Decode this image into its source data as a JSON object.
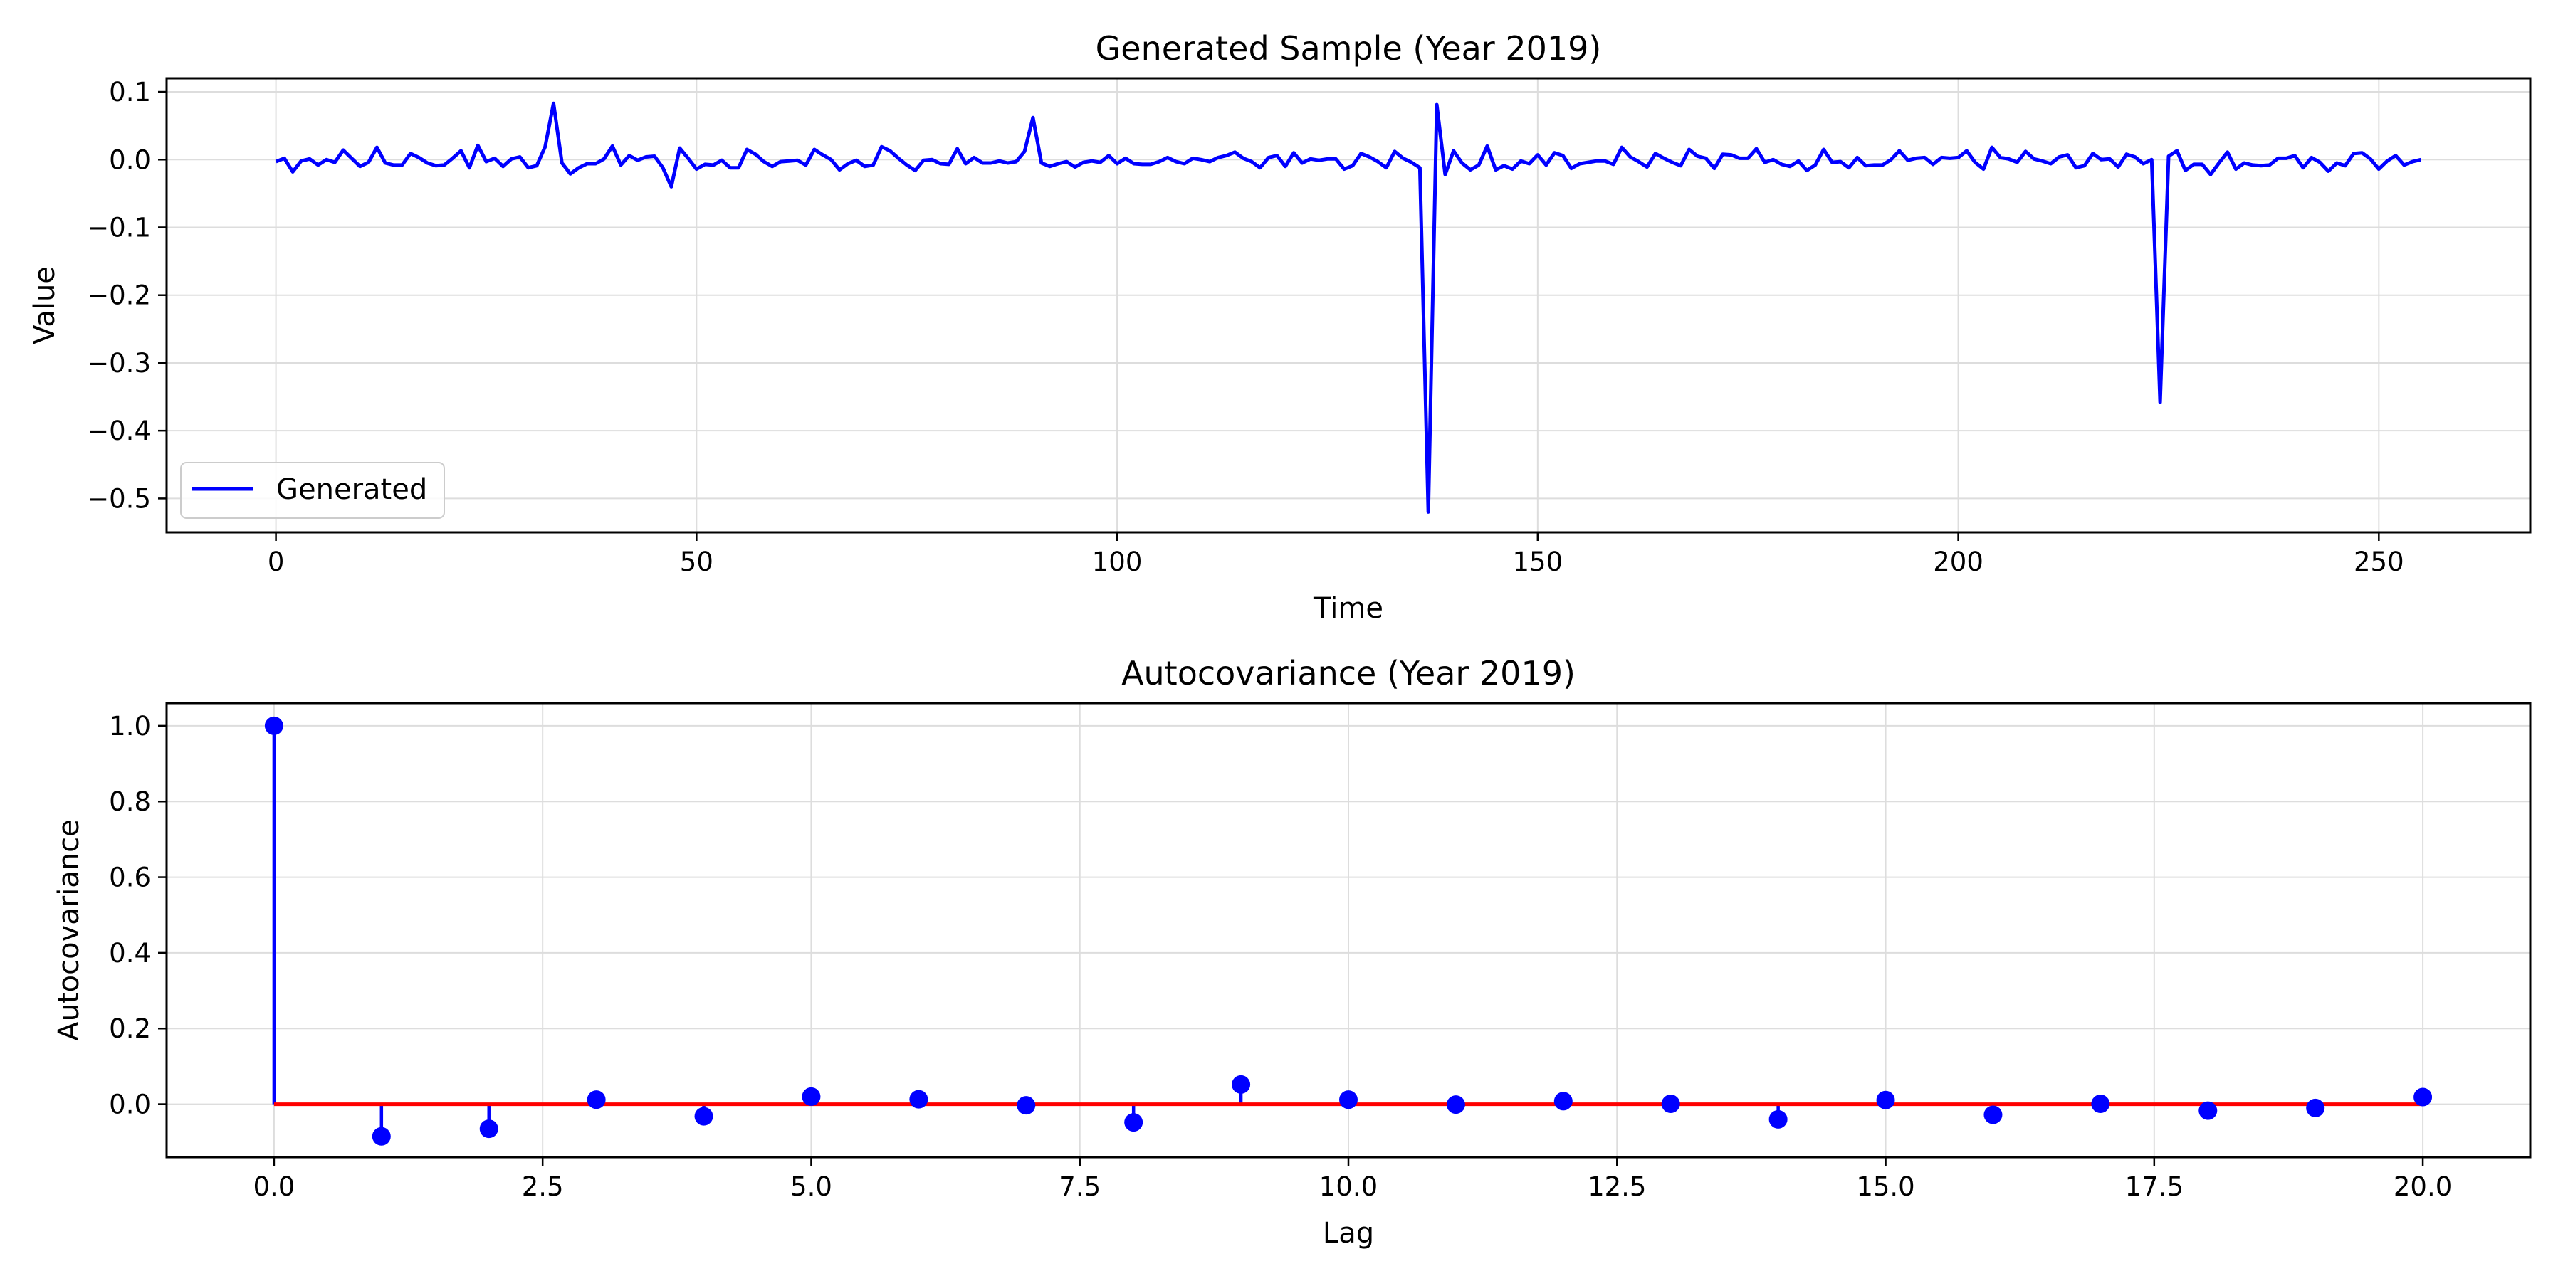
{
  "chart_data": [
    {
      "type": "line",
      "title": "Generated Sample (Year 2019)",
      "xlabel": "Time",
      "ylabel": "Value",
      "xlim": [
        -13,
        268
      ],
      "ylim": [
        -0.55,
        0.12
      ],
      "xticks": [
        0,
        50,
        100,
        150,
        200,
        250
      ],
      "xtick_labels": [
        "0",
        "50",
        "100",
        "150",
        "200",
        "250"
      ],
      "yticks": [
        0.1,
        0.0,
        -0.1,
        -0.2,
        -0.3,
        -0.4,
        -0.5
      ],
      "ytick_labels": [
        "0.1",
        "0.0",
        "−0.1",
        "−0.2",
        "−0.3",
        "−0.4",
        "−0.5"
      ],
      "grid": true,
      "legend": "lower-left",
      "series": [
        {
          "name": "Generated",
          "color": "#0000ff",
          "x_start": 0,
          "x_step": 1,
          "values": [
            -0.003,
            0.002,
            -0.018,
            -0.002,
            0.001,
            -0.008,
            0.0,
            -0.004,
            0.014,
            0.002,
            -0.01,
            -0.004,
            0.018,
            -0.005,
            -0.008,
            -0.008,
            0.009,
            0.003,
            -0.005,
            -0.009,
            -0.008,
            0.002,
            0.013,
            -0.012,
            0.021,
            -0.003,
            0.002,
            -0.01,
            0.001,
            0.004,
            -0.012,
            -0.009,
            0.019,
            0.083,
            -0.005,
            -0.021,
            -0.012,
            -0.006,
            -0.006,
            0.001,
            0.02,
            -0.008,
            0.006,
            -0.001,
            0.004,
            0.005,
            -0.012,
            -0.04,
            0.017,
            0.002,
            -0.014,
            -0.007,
            -0.008,
            -0.001,
            -0.012,
            -0.012,
            0.015,
            0.008,
            -0.003,
            -0.01,
            -0.003,
            -0.002,
            -0.001,
            -0.008,
            0.015,
            0.007,
            0.0,
            -0.015,
            -0.006,
            -0.001,
            -0.01,
            -0.008,
            0.019,
            0.013,
            0.002,
            -0.008,
            -0.016,
            -0.001,
            0.0,
            -0.006,
            -0.007,
            0.016,
            -0.006,
            0.003,
            -0.005,
            -0.005,
            -0.002,
            -0.005,
            -0.003,
            0.012,
            0.062,
            -0.005,
            -0.01,
            -0.006,
            -0.003,
            -0.011,
            -0.004,
            -0.002,
            -0.004,
            0.006,
            -0.006,
            0.002,
            -0.006,
            -0.007,
            -0.007,
            -0.003,
            0.003,
            -0.003,
            -0.006,
            0.002,
            0.0,
            -0.003,
            0.003,
            0.006,
            0.011,
            0.002,
            -0.003,
            -0.012,
            0.003,
            0.006,
            -0.01,
            0.01,
            -0.005,
            0.001,
            -0.001,
            0.001,
            0.001,
            -0.014,
            -0.009,
            0.009,
            0.004,
            -0.003,
            -0.012,
            0.012,
            0.002,
            -0.004,
            -0.012,
            -0.52,
            0.081,
            -0.022,
            0.013,
            -0.005,
            -0.015,
            -0.008,
            0.02,
            -0.015,
            -0.009,
            -0.014,
            -0.002,
            -0.006,
            0.007,
            -0.008,
            0.01,
            0.006,
            -0.013,
            -0.006,
            -0.004,
            -0.002,
            -0.002,
            -0.007,
            0.018,
            0.004,
            -0.003,
            -0.011,
            0.009,
            0.002,
            -0.004,
            -0.009,
            0.015,
            0.005,
            0.002,
            -0.013,
            0.008,
            0.007,
            0.002,
            0.002,
            0.016,
            -0.004,
            0.0,
            -0.007,
            -0.01,
            -0.002,
            -0.016,
            -0.008,
            0.015,
            -0.004,
            -0.003,
            -0.012,
            0.003,
            -0.009,
            -0.008,
            -0.008,
            0.0,
            0.013,
            -0.001,
            0.002,
            0.003,
            -0.007,
            0.003,
            0.002,
            0.003,
            0.013,
            -0.004,
            -0.014,
            0.018,
            0.003,
            0.001,
            -0.004,
            0.012,
            0.001,
            -0.002,
            -0.006,
            0.004,
            0.007,
            -0.012,
            -0.009,
            0.009,
            0.0,
            0.001,
            -0.011,
            0.008,
            0.004,
            -0.006,
            0.0,
            -0.358,
            0.005,
            0.013,
            -0.016,
            -0.007,
            -0.007,
            -0.022,
            -0.005,
            0.011,
            -0.014,
            -0.005,
            -0.008,
            -0.009,
            -0.008,
            0.002,
            0.002,
            0.006,
            -0.012,
            0.003,
            -0.004,
            -0.017,
            -0.005,
            -0.009,
            0.009,
            0.01,
            0.001,
            -0.014,
            -0.002,
            0.006,
            -0.008,
            -0.003,
            0.0
          ]
        }
      ]
    },
    {
      "type": "stem",
      "title": "Autocovariance (Year 2019)",
      "xlabel": "Lag",
      "ylabel": "Autocovariance",
      "xlim": [
        -1,
        21
      ],
      "ylim": [
        -0.14,
        1.06
      ],
      "xticks": [
        0,
        2.5,
        5,
        7.5,
        10,
        12.5,
        15,
        17.5,
        20
      ],
      "xtick_labels": [
        "0.0",
        "2.5",
        "5.0",
        "7.5",
        "10.0",
        "12.5",
        "15.0",
        "17.5",
        "20.0"
      ],
      "yticks": [
        1.0,
        0.8,
        0.6,
        0.4,
        0.2,
        0.0
      ],
      "ytick_labels": [
        "1.0",
        "0.8",
        "0.6",
        "0.4",
        "0.2",
        "0.0"
      ],
      "grid": true,
      "baseline_color": "#ff0000",
      "stem_color": "#0000ff",
      "x": [
        0,
        1,
        2,
        3,
        4,
        5,
        6,
        7,
        8,
        9,
        10,
        11,
        12,
        13,
        14,
        15,
        16,
        17,
        18,
        19,
        20
      ],
      "values": [
        1.0,
        -0.085,
        -0.065,
        0.012,
        -0.032,
        0.02,
        0.013,
        -0.003,
        -0.048,
        0.052,
        0.012,
        -0.001,
        0.008,
        0.001,
        -0.04,
        0.011,
        -0.028,
        0.001,
        -0.017,
        -0.01,
        0.019
      ]
    }
  ]
}
